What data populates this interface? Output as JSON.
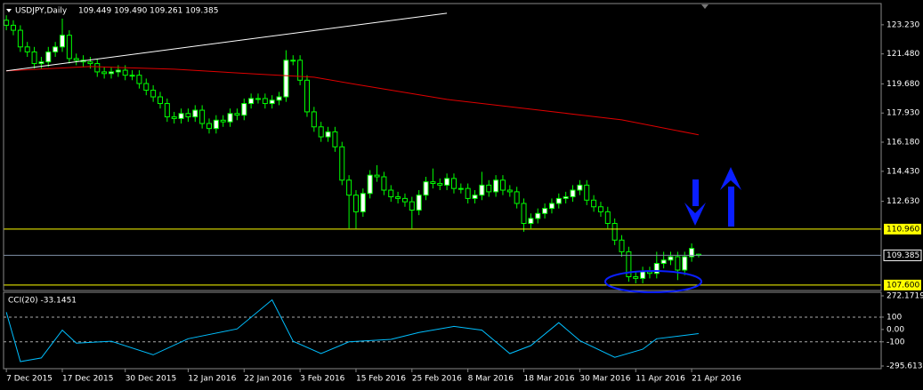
{
  "chart_data": [
    {
      "type": "candlestick",
      "title": "USDJPY,Daily",
      "subtitle": "109.449 109.490 109.261 109.385",
      "xlim": [
        -0.4,
        125.1
      ],
      "ylim": [
        107.38,
        124.45
      ],
      "yticks": [
        {
          "value": 123.23,
          "label": "123.230"
        },
        {
          "value": 121.48,
          "label": "121.480"
        },
        {
          "value": 119.68,
          "label": "119.680"
        },
        {
          "value": 117.93,
          "label": "117.930"
        },
        {
          "value": 116.18,
          "label": "116.180"
        },
        {
          "value": 114.43,
          "label": "114.430"
        },
        {
          "value": 112.63,
          "label": "112.630"
        }
      ],
      "up_color": "#ffffff",
      "down_color": "#000000",
      "wick_color": "#00ff00",
      "open": [
        123.5,
        123.2,
        122.9,
        121.9,
        121.6,
        120.9,
        121.0,
        121.6,
        121.9,
        122.6,
        121.2,
        121.1,
        121.0,
        120.9,
        120.4,
        120.3,
        120.4,
        120.5,
        120.2,
        120.2,
        119.7,
        119.3,
        118.9,
        118.5,
        117.7,
        117.6,
        117.9,
        117.7,
        118.1,
        117.3,
        117.0,
        117.5,
        117.4,
        117.9,
        117.8,
        118.5,
        118.8,
        118.8,
        118.5,
        118.7,
        118.9,
        121.1,
        121.1,
        119.9,
        118.0,
        117.1,
        116.5,
        116.8,
        115.9,
        113.9,
        113.0,
        112.0,
        113.1,
        114.2,
        114.1,
        113.3,
        112.9,
        112.8,
        112.6,
        112.1,
        113.0,
        113.8,
        113.7,
        113.6,
        114.0,
        113.4,
        113.4,
        112.8,
        113.0,
        113.6,
        113.2,
        113.9,
        113.3,
        113.2,
        112.5,
        111.3,
        111.6,
        111.9,
        112.2,
        112.5,
        112.8,
        112.9,
        113.3,
        113.6,
        112.7,
        112.3,
        112.0,
        111.3,
        110.3,
        109.6,
        108.1,
        108.0,
        108.4,
        108.3,
        108.9,
        109.1,
        109.3,
        108.5,
        109.3,
        109.449
      ],
      "high": [
        123.8,
        123.5,
        123.2,
        122.2,
        121.9,
        121.3,
        121.9,
        122.2,
        123.6,
        122.9,
        121.5,
        121.4,
        121.3,
        121.2,
        120.7,
        120.7,
        120.8,
        120.8,
        120.5,
        120.5,
        120.0,
        119.6,
        119.2,
        118.8,
        118.0,
        118.2,
        118.2,
        118.4,
        118.4,
        117.6,
        117.8,
        117.8,
        118.2,
        118.2,
        118.8,
        119.1,
        119.1,
        119.1,
        119.0,
        119.2,
        121.7,
        121.4,
        121.4,
        120.2,
        118.3,
        117.4,
        117.1,
        117.1,
        116.2,
        114.2,
        113.3,
        113.4,
        114.5,
        114.8,
        114.4,
        113.6,
        113.2,
        113.1,
        112.9,
        113.3,
        114.1,
        114.6,
        114.0,
        114.3,
        114.3,
        113.7,
        113.7,
        113.3,
        114.4,
        113.9,
        114.2,
        114.2,
        113.6,
        113.5,
        112.8,
        111.9,
        112.2,
        112.5,
        112.8,
        113.1,
        113.2,
        113.6,
        113.9,
        113.9,
        113.0,
        112.6,
        112.3,
        111.6,
        110.6,
        109.9,
        108.4,
        108.7,
        108.7,
        109.6,
        109.6,
        109.6,
        109.6,
        109.6,
        110.1,
        109.49
      ],
      "low": [
        122.9,
        122.6,
        121.6,
        121.3,
        120.6,
        120.6,
        120.7,
        121.3,
        121.6,
        120.9,
        120.8,
        120.7,
        120.6,
        120.1,
        120.0,
        120.0,
        120.1,
        119.9,
        119.9,
        119.4,
        119.0,
        118.6,
        118.2,
        117.4,
        117.3,
        117.3,
        117.4,
        117.4,
        117.0,
        116.7,
        116.7,
        117.1,
        117.1,
        117.5,
        117.5,
        118.2,
        118.5,
        118.2,
        118.2,
        118.4,
        118.6,
        120.8,
        119.6,
        117.7,
        116.8,
        116.2,
        116.2,
        115.6,
        113.6,
        111.0,
        111.0,
        111.7,
        112.8,
        113.8,
        113.0,
        112.6,
        112.5,
        112.3,
        111.0,
        111.8,
        112.7,
        113.4,
        113.3,
        113.3,
        113.1,
        113.1,
        112.5,
        112.5,
        112.7,
        112.9,
        112.9,
        113.0,
        112.9,
        112.2,
        110.8,
        111.0,
        111.3,
        111.6,
        111.9,
        112.2,
        112.5,
        112.6,
        113.0,
        112.4,
        112.0,
        111.7,
        111.0,
        110.0,
        109.3,
        107.8,
        107.7,
        107.7,
        108.0,
        108.0,
        108.6,
        108.8,
        107.9,
        108.2,
        109.0,
        109.261
      ],
      "close": [
        123.2,
        122.9,
        121.9,
        121.6,
        120.9,
        121.0,
        121.6,
        121.9,
        122.6,
        121.2,
        121.1,
        121.0,
        120.9,
        120.4,
        120.3,
        120.4,
        120.5,
        120.2,
        120.2,
        119.7,
        119.3,
        118.9,
        118.5,
        117.7,
        117.6,
        117.9,
        117.7,
        118.1,
        117.3,
        117.0,
        117.5,
        117.4,
        117.9,
        117.8,
        118.5,
        118.8,
        118.8,
        118.5,
        118.7,
        118.9,
        121.1,
        121.1,
        119.9,
        118.0,
        117.1,
        116.5,
        116.8,
        115.9,
        113.9,
        113.0,
        112.0,
        113.1,
        114.2,
        114.1,
        113.3,
        112.9,
        112.8,
        112.6,
        112.1,
        113.0,
        113.8,
        113.7,
        113.6,
        114.0,
        113.4,
        113.4,
        112.8,
        113.0,
        113.6,
        113.2,
        113.9,
        113.3,
        113.2,
        112.5,
        111.3,
        111.6,
        111.9,
        112.2,
        112.5,
        112.8,
        112.9,
        113.3,
        113.6,
        112.7,
        112.3,
        112.0,
        111.3,
        110.3,
        109.6,
        108.1,
        108.0,
        108.4,
        108.3,
        108.9,
        109.1,
        109.3,
        108.5,
        109.3,
        109.8,
        109.385
      ],
      "ma": {
        "color": "#e00000",
        "x": [
          0,
          12,
          24,
          37,
          44,
          50,
          63,
          75,
          88,
          99
        ],
        "values": [
          120.46,
          120.72,
          120.56,
          120.24,
          120.08,
          119.65,
          118.75,
          118.16,
          117.52,
          116.62
        ]
      },
      "trendline": {
        "color": "#ffffff",
        "x": [
          0,
          63
        ],
        "values": [
          120.46,
          123.92
        ]
      },
      "levels": [
        {
          "value": 110.96,
          "label": "110.960",
          "color": "#ffff00"
        },
        {
          "value": 109.385,
          "label": "109.385",
          "color": "#7f8fa6"
        },
        {
          "value": 107.6,
          "label": "107.600",
          "color": "#ffff00"
        }
      ]
    },
    {
      "type": "line",
      "title": "CCI(20) -33.1451",
      "color": "#00bfff",
      "xlim": [
        -0.4,
        125.1
      ],
      "ylim": [
        -295.6136,
        272.1719
      ],
      "yticks": [
        {
          "value": 272.1719,
          "label": "272.1719"
        },
        100,
        {
          "value": 0,
          "label": "0.00"
        },
        -100,
        {
          "value": -295.6136,
          "label": "-295.6136"
        }
      ],
      "levels": [
        100,
        -100
      ],
      "x": [
        0,
        2,
        5,
        8,
        10,
        15,
        21,
        26,
        33,
        38,
        41,
        45,
        49,
        55,
        59,
        64,
        68,
        72,
        75,
        79,
        82,
        87,
        91,
        93,
        99
      ],
      "values": [
        140,
        -260,
        -230,
        -5,
        -110,
        -95,
        -205,
        -75,
        5,
        240,
        -95,
        -195,
        -100,
        -80,
        -25,
        25,
        -5,
        -195,
        -130,
        55,
        -90,
        -225,
        -160,
        -75,
        -33.1451
      ],
      "xticks": [
        {
          "value": 0,
          "label": "7 Dec 2015"
        },
        {
          "value": 8,
          "label": "17 Dec 2015"
        },
        {
          "value": 17,
          "label": "30 Dec 2015"
        },
        {
          "value": 26,
          "label": "12 Jan 2016"
        },
        {
          "value": 34,
          "label": "22 Jan 2016"
        },
        {
          "value": 42,
          "label": "3 Feb 2016"
        },
        {
          "value": 50,
          "label": "15 Feb 2016"
        },
        {
          "value": 58,
          "label": "25 Feb 2016"
        },
        {
          "value": 66,
          "label": "8 Mar 2016"
        },
        {
          "value": 74,
          "label": "18 Mar 2016"
        },
        {
          "value": 82,
          "label": "30 Mar 2016"
        },
        {
          "value": 90,
          "label": "11 Apr 2016"
        },
        {
          "value": 98,
          "label": "21 Apr 2016"
        }
      ]
    }
  ]
}
